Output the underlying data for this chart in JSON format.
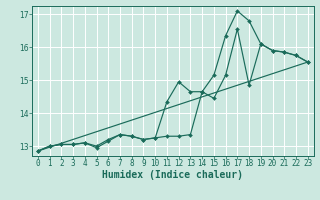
{
  "xlabel": "Humidex (Indice chaleur)",
  "bg_color": "#cce8e0",
  "grid_color": "#ffffff",
  "line_color": "#1a6b5a",
  "xlim": [
    -0.5,
    23.5
  ],
  "ylim": [
    12.7,
    17.25
  ],
  "yticks": [
    13,
    14,
    15,
    16,
    17
  ],
  "xticks": [
    0,
    1,
    2,
    3,
    4,
    5,
    6,
    7,
    8,
    9,
    10,
    11,
    12,
    13,
    14,
    15,
    16,
    17,
    18,
    19,
    20,
    21,
    22,
    23
  ],
  "series1_x": [
    0,
    1,
    2,
    3,
    4,
    5,
    6,
    7,
    8,
    9,
    10,
    11,
    12,
    13,
    14,
    15,
    16,
    17,
    18,
    19,
    20,
    21,
    22,
    23
  ],
  "series1_y": [
    12.85,
    13.0,
    13.05,
    13.05,
    13.1,
    13.0,
    13.2,
    13.35,
    13.3,
    13.2,
    13.25,
    13.3,
    13.3,
    13.35,
    14.65,
    15.15,
    16.35,
    17.1,
    16.8,
    16.1,
    15.9,
    15.85,
    15.75,
    15.55
  ],
  "series2_x": [
    0,
    1,
    2,
    3,
    4,
    5,
    6,
    7,
    8,
    9,
    10,
    11,
    12,
    13,
    14,
    15,
    16,
    17,
    18,
    19,
    20,
    21,
    22,
    23
  ],
  "series2_y": [
    12.85,
    13.0,
    13.05,
    13.05,
    13.1,
    12.95,
    13.15,
    13.35,
    13.3,
    13.2,
    13.25,
    14.35,
    14.95,
    14.65,
    14.65,
    14.45,
    15.15,
    16.55,
    14.85,
    16.1,
    15.9,
    15.85,
    15.75,
    15.55
  ],
  "series3_x": [
    0,
    23
  ],
  "series3_y": [
    12.85,
    15.55
  ],
  "xlabel_fontsize": 7,
  "tick_fontsize": 5.5,
  "linewidth": 0.85,
  "markersize": 2.0
}
